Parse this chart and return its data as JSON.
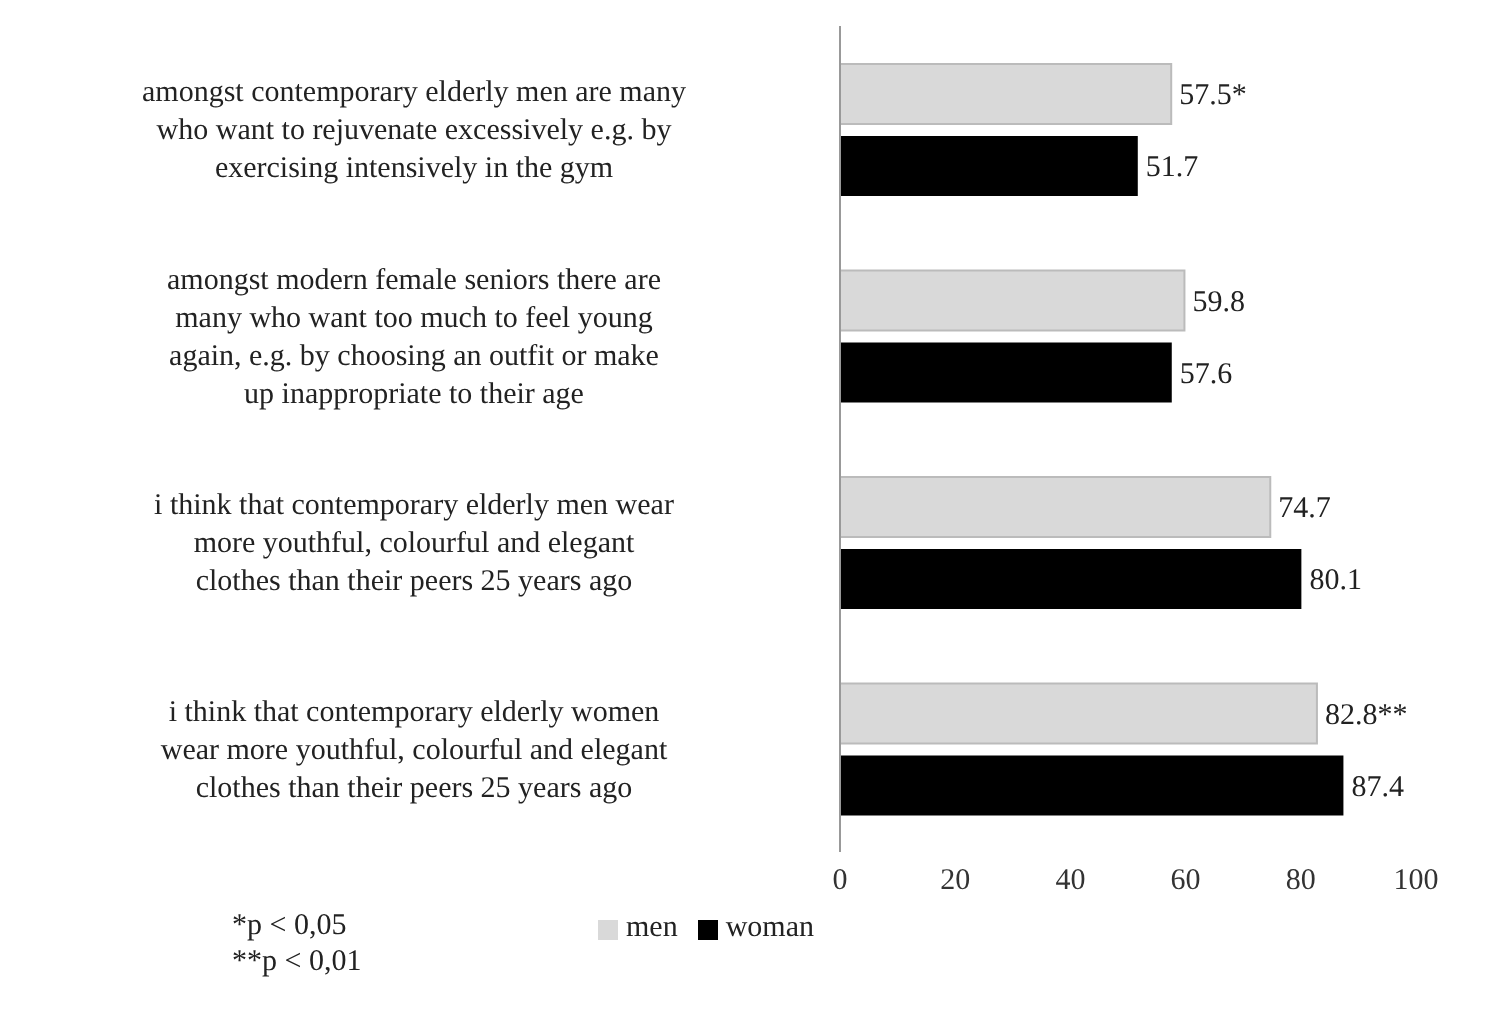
{
  "chart_data": {
    "type": "bar",
    "orientation": "horizontal",
    "categories": [
      "amongst contemporary elderly men are many who want to rejuvenate excessively e.g. by exercising intensively in the gym",
      "amongst modern female seniors there are many who want too much to feel young again, e.g. by choosing an outfit or make up inappropriate to their age",
      "i think that contemporary elderly men wear more youthful, colourful and elegant clothes than their peers 25 years ago",
      "i think that contemporary elderly women wear more youthful, colourful and elegant clothes than their peers 25 years ago"
    ],
    "series": [
      {
        "name": "men",
        "color": "#d9d9d9",
        "values": [
          57.5,
          59.8,
          74.7,
          82.8
        ],
        "value_labels": [
          "57.5*",
          "59.8",
          "74.7",
          "82.8**"
        ]
      },
      {
        "name": "woman",
        "color": "#000000",
        "values": [
          51.7,
          57.6,
          80.1,
          87.4
        ],
        "value_labels": [
          "51.7",
          "57.6",
          "80.1",
          "87.4"
        ]
      }
    ],
    "xlim": [
      0,
      100
    ],
    "xticks": [
      0,
      20,
      40,
      60,
      80,
      100
    ],
    "grid": false,
    "legend": "bottom",
    "annotations": [
      "*p < 0,05",
      "**p < 0,01"
    ]
  }
}
